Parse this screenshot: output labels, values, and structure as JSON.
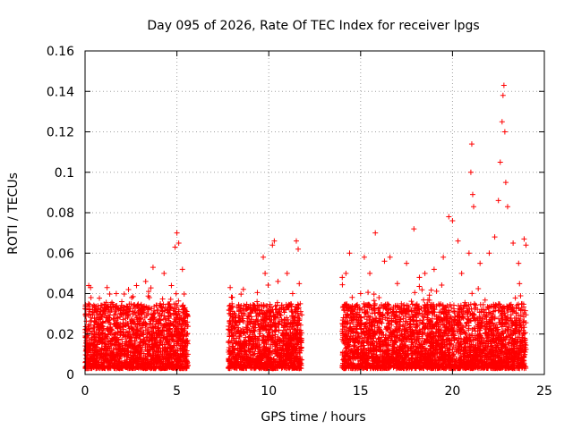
{
  "chart_data": {
    "type": "scatter",
    "title": "Day 095 of 2026, Rate Of TEC Index for receiver lpgs",
    "xlabel": "GPS time / hours",
    "ylabel": "ROTI / TECUs",
    "xlim": [
      0,
      25
    ],
    "ylim": [
      0,
      0.16
    ],
    "grid": true,
    "xticks": [
      0,
      5,
      10,
      15,
      20,
      25
    ],
    "xtick_labels": [
      "0",
      "5",
      "10",
      "15",
      "20",
      "25"
    ],
    "yticks": [
      0,
      0.02,
      0.04,
      0.06,
      0.08,
      0.1,
      0.12,
      0.14,
      0.16
    ],
    "ytick_labels": [
      "0",
      "0.02",
      "0.04",
      "0.06",
      "0.08",
      "0.1",
      "0.12",
      "0.14",
      "0.16"
    ],
    "marker": "+",
    "color": "#ff0000",
    "series": [
      {
        "name": "ROTI",
        "points": [
          [
            0.05,
            0.03
          ],
          [
            0.1,
            0.012
          ],
          [
            0.2,
            0.044
          ],
          [
            0.3,
            0.043
          ],
          [
            0.35,
            0.02
          ],
          [
            0.5,
            0.008
          ],
          [
            0.7,
            0.016
          ],
          [
            1.0,
            0.01
          ],
          [
            1.2,
            0.043
          ],
          [
            1.3,
            0.033
          ],
          [
            1.5,
            0.022
          ],
          [
            1.7,
            0.04
          ],
          [
            2.0,
            0.036
          ],
          [
            2.2,
            0.012
          ],
          [
            2.4,
            0.018
          ],
          [
            2.8,
            0.044
          ],
          [
            3.0,
            0.025
          ],
          [
            3.3,
            0.046
          ],
          [
            3.5,
            0.038
          ],
          [
            3.7,
            0.053
          ],
          [
            4.0,
            0.025
          ],
          [
            4.3,
            0.05
          ],
          [
            4.5,
            0.032
          ],
          [
            4.7,
            0.044
          ],
          [
            4.9,
            0.063
          ],
          [
            5.0,
            0.07
          ],
          [
            5.1,
            0.065
          ],
          [
            5.3,
            0.052
          ],
          [
            5.5,
            0.03
          ],
          [
            5.6,
            0.01
          ],
          [
            7.9,
            0.043
          ],
          [
            8.0,
            0.035
          ],
          [
            8.2,
            0.02
          ],
          [
            8.6,
            0.029
          ],
          [
            9.0,
            0.025
          ],
          [
            9.4,
            0.033
          ],
          [
            9.7,
            0.058
          ],
          [
            9.8,
            0.05
          ],
          [
            10.2,
            0.064
          ],
          [
            10.3,
            0.066
          ],
          [
            10.5,
            0.046
          ],
          [
            10.8,
            0.032
          ],
          [
            11.0,
            0.05
          ],
          [
            11.3,
            0.04
          ],
          [
            11.5,
            0.066
          ],
          [
            11.6,
            0.062
          ],
          [
            11.7,
            0.02
          ],
          [
            14.0,
            0.048
          ],
          [
            14.2,
            0.05
          ],
          [
            14.4,
            0.06
          ],
          [
            14.6,
            0.03
          ],
          [
            15.0,
            0.04
          ],
          [
            15.2,
            0.058
          ],
          [
            15.5,
            0.05
          ],
          [
            15.8,
            0.07
          ],
          [
            16.0,
            0.038
          ],
          [
            16.3,
            0.056
          ],
          [
            16.6,
            0.058
          ],
          [
            17.0,
            0.045
          ],
          [
            17.5,
            0.055
          ],
          [
            17.9,
            0.072
          ],
          [
            18.2,
            0.048
          ],
          [
            18.5,
            0.05
          ],
          [
            19.0,
            0.052
          ],
          [
            19.5,
            0.058
          ],
          [
            19.8,
            0.078
          ],
          [
            20.0,
            0.076
          ],
          [
            20.3,
            0.066
          ],
          [
            20.5,
            0.05
          ],
          [
            20.9,
            0.06
          ],
          [
            21.0,
            0.1
          ],
          [
            21.05,
            0.114
          ],
          [
            21.1,
            0.089
          ],
          [
            21.15,
            0.083
          ],
          [
            21.5,
            0.055
          ],
          [
            22.0,
            0.06
          ],
          [
            22.3,
            0.068
          ],
          [
            22.5,
            0.086
          ],
          [
            22.6,
            0.105
          ],
          [
            22.7,
            0.125
          ],
          [
            22.75,
            0.138
          ],
          [
            22.8,
            0.143
          ],
          [
            22.85,
            0.12
          ],
          [
            22.9,
            0.095
          ],
          [
            23.0,
            0.083
          ],
          [
            23.3,
            0.065
          ],
          [
            23.6,
            0.055
          ],
          [
            23.9,
            0.067
          ],
          [
            24.0,
            0.064
          ]
        ]
      }
    ],
    "dense_band": {
      "description": "Dense cluster of ROTI samples between 0.003 and ~0.035 TECUs",
      "segments": [
        [
          0,
          5.6
        ],
        [
          7.8,
          11.8
        ],
        [
          14.0,
          24.0
        ]
      ],
      "min": 0.003,
      "typical_max": 0.035
    }
  }
}
